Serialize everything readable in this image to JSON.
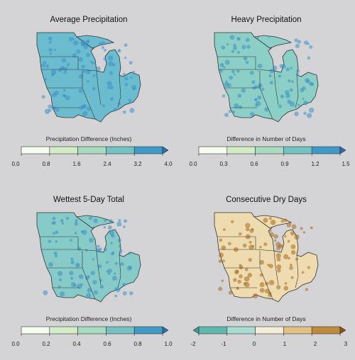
{
  "panels": [
    {
      "title": "Average Precipitation",
      "legend_title": "Precipitation Difference (Inches)",
      "ticks": [
        "0.0",
        "0.8",
        "1.6",
        "2.4",
        "3.2",
        "4.0"
      ],
      "colors": [
        "#f7fcf0",
        "#d2ecc7",
        "#a8dbc0",
        "#74c2c4",
        "#3f9ac8"
      ],
      "arrow_right": "#2b6cb4",
      "map_fill": "#6cbcd0",
      "map_fill_dark": "#3d8fc4"
    },
    {
      "title": "Heavy Precipitation",
      "legend_title": "Difference in Number of Days",
      "ticks": [
        "0.0",
        "0.3",
        "0.6",
        "0.9",
        "1.2",
        "1.5"
      ],
      "colors": [
        "#f7fcf0",
        "#d2ecc7",
        "#a8dbc0",
        "#74c2c4",
        "#3f9ac8"
      ],
      "arrow_right": "#2b6cb4",
      "map_fill": "#8ccfc6",
      "map_fill_dark": "#3d8fc4"
    },
    {
      "title": "Wettest 5-Day Total",
      "legend_title": "Precipitation Difference (Inches)",
      "ticks": [
        "0.0",
        "0.2",
        "0.4",
        "0.6",
        "0.8",
        "1.0"
      ],
      "colors": [
        "#f7fcf0",
        "#d2ecc7",
        "#a8dbc0",
        "#74c2c4",
        "#3f9ac8"
      ],
      "arrow_right": "#2b6cb4",
      "map_fill": "#86cbc8",
      "map_fill_dark": "#3d8fc4"
    },
    {
      "title": "Consecutive Dry Days",
      "legend_title": "Difference in Number of Days",
      "ticks": [
        "-2",
        "-1",
        "0",
        "1",
        "2",
        "3"
      ],
      "colors": [
        "#5fb8b0",
        "#a9dcd3",
        "#f5ecd5",
        "#e1c284",
        "#bf8a3c"
      ],
      "arrow_left": "#3c9a94",
      "arrow_right": "#8a5318",
      "map_fill": "#eedbb0",
      "map_fill_dark": "#a8691e"
    }
  ]
}
